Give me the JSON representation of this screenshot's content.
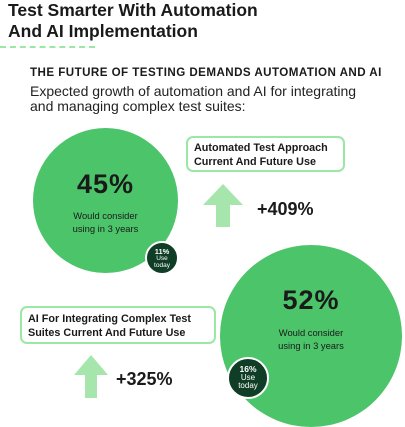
{
  "header": {
    "title_line1": "Test Smarter With Automation",
    "title_line2": "And AI Implementation",
    "subtitle": "THE FUTURE OF TESTING DEMANDS AUTOMATION AND AI",
    "description_line1": "Expected growth of automation and AI for integrating",
    "description_line2": "and managing complex test suites:"
  },
  "automated": {
    "label_line1": "Automated Test Approach",
    "label_line2": "Current And Future Use",
    "future_percent": "45%",
    "future_caption_line1": "Would consider",
    "future_caption_line2": "using in 3 years",
    "today_percent": "11%",
    "today_caption_line1": "Use",
    "today_caption_line2": "today",
    "growth": "+409%",
    "arrow_icon": "arrow-up-icon"
  },
  "ai": {
    "label_line1": "AI For Integrating Complex Test",
    "label_line2": "Suites Current And Future Use",
    "future_percent": "52%",
    "future_caption_line1": "Would consider",
    "future_caption_line2": "using in 3 years",
    "today_percent": "16%",
    "today_caption_line1": "Use",
    "today_caption_line2": "today",
    "growth": "+325%",
    "arrow_icon": "arrow-up-icon"
  },
  "colors": {
    "green": "#4cc46a",
    "light_green": "#9be7a4",
    "dark_green": "#0f3d25",
    "arrow_green": "#a6e6ad"
  }
}
